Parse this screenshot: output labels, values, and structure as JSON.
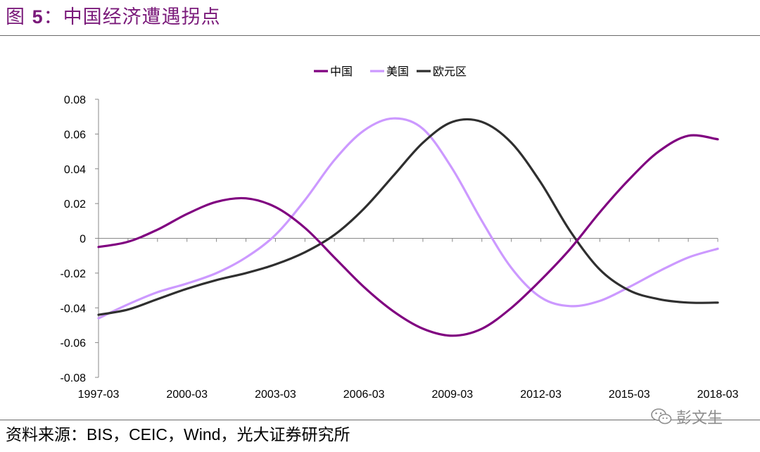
{
  "title": {
    "prefix": "图",
    "number": "5",
    "rest": "：中国经济遭遇拐点"
  },
  "source": {
    "label": "资料来源：",
    "latin": "BIS，CEIC，Wind，",
    "cn": "光大证券研究所"
  },
  "watermark": {
    "text": "彭文生",
    "icon": "wechat-icon"
  },
  "chart_data": {
    "type": "line",
    "title": "",
    "xlabel": "",
    "ylabel": "",
    "x_start": "1997-03",
    "x_end": "2018-03",
    "x_ticks": [
      "1997-03",
      "2000-03",
      "2003-03",
      "2006-03",
      "2009-03",
      "2012-03",
      "2015-03",
      "2018-03"
    ],
    "y_ticks": [
      "0.08",
      "0.06",
      "0.04",
      "0.02",
      "0",
      "-0.02",
      "-0.04",
      "-0.06",
      "-0.08"
    ],
    "ylim": [
      -0.08,
      0.08
    ],
    "grid": false,
    "legend_position": "top-center",
    "colors": {
      "china": "#800080",
      "us": "#cc99ff",
      "euro": "#2f2f2f"
    },
    "x": [
      "1997-03",
      "1998-03",
      "1999-03",
      "2000-03",
      "2001-03",
      "2002-03",
      "2003-03",
      "2004-03",
      "2005-03",
      "2006-03",
      "2007-03",
      "2008-03",
      "2009-03",
      "2010-03",
      "2011-03",
      "2012-03",
      "2013-03",
      "2014-03",
      "2015-03",
      "2016-03",
      "2017-03",
      "2018-03"
    ],
    "series": [
      {
        "name": "中国",
        "color": "#800080",
        "values": [
          -0.005,
          -0.002,
          0.005,
          0.014,
          0.021,
          0.023,
          0.018,
          0.006,
          -0.011,
          -0.028,
          -0.042,
          -0.052,
          -0.056,
          -0.052,
          -0.04,
          -0.024,
          -0.006,
          0.015,
          0.034,
          0.05,
          0.059,
          0.057
        ]
      },
      {
        "name": "美国",
        "color": "#cc99ff",
        "values": [
          -0.046,
          -0.038,
          -0.031,
          -0.026,
          -0.02,
          -0.011,
          0.002,
          0.022,
          0.045,
          0.062,
          0.069,
          0.063,
          0.04,
          0.01,
          -0.017,
          -0.034,
          -0.039,
          -0.036,
          -0.028,
          -0.019,
          -0.011,
          -0.006
        ]
      },
      {
        "name": "欧元区",
        "color": "#2f2f2f",
        "values": [
          -0.044,
          -0.041,
          -0.035,
          -0.029,
          -0.024,
          -0.02,
          -0.015,
          -0.008,
          0.002,
          0.017,
          0.036,
          0.055,
          0.067,
          0.067,
          0.055,
          0.032,
          0.004,
          -0.018,
          -0.03,
          -0.035,
          -0.037,
          -0.037
        ]
      }
    ]
  }
}
